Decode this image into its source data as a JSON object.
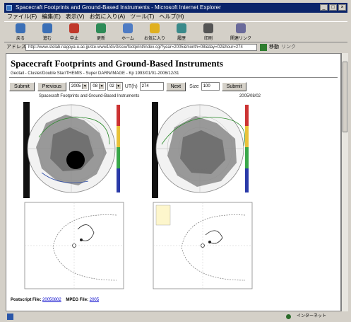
{
  "window": {
    "title": "Spacecraft Footprints and Ground-Based Instruments - Microsoft Internet Explorer",
    "minimize": "_",
    "maximize": "□",
    "close": "×"
  },
  "menu": [
    "ファイル(F)",
    "編集(E)",
    "表示(V)",
    "お気に入り(A)",
    "ツール(T)",
    "ヘルプ(H)"
  ],
  "toolbar": [
    {
      "label": "戻る",
      "icon": "back-icon",
      "color": "#3b6fb6"
    },
    {
      "label": "進む",
      "icon": "forward-icon",
      "color": "#3b6fb6"
    },
    {
      "label": "中止",
      "icon": "stop-icon",
      "color": "#c0392b"
    },
    {
      "label": "更新",
      "icon": "refresh-icon",
      "color": "#2e8b57"
    },
    {
      "label": "ホーム",
      "icon": "home-icon",
      "color": "#4f7cc4"
    },
    {
      "label": "お気に入り",
      "icon": "favorites-icon",
      "color": "#e0b020"
    },
    {
      "label": "履歴",
      "icon": "history-icon",
      "color": "#3a8a8a"
    },
    {
      "label": "印刷",
      "icon": "print-icon",
      "color": "#555555"
    },
    {
      "label": "関連リンク",
      "icon": "edit-icon",
      "color": "#6a6a9a"
    }
  ],
  "address": {
    "label": "アドレス",
    "url": "http://www.stelab.nagoya-u.ac.jp/ste-www1/div3/ssw/footprint/index.cgi?year=2005&month=08&day=02&hour=274",
    "go": "移動",
    "links": "リンク"
  },
  "page": {
    "title": "Spacecraft Footprints and Ground-Based Instruments",
    "subtitle": "Geotail - Cluster/Double Star/THEMIS - Super DARN/IMAGE - Kp 1993/01/01-2006/12/31"
  },
  "controls": {
    "submit1": "Submit",
    "previous": "Previous",
    "year": "2005",
    "month": "08",
    "day": "02",
    "hour_label": "UT(h)",
    "hour_value": "274",
    "next": "Next",
    "size_label": "Size",
    "size_value": "100",
    "submit2": "Submit"
  },
  "figure": {
    "title": "Spacecraft Footprints and Ground-Based Instruments",
    "date": "2005/08/02"
  },
  "footer": {
    "postscript_label": "Postscript File:",
    "postscript_link": "20050802",
    "mpeg_label": "MPEG File:",
    "mpeg_link": "2005"
  },
  "status": {
    "text": "",
    "zone": "インターネット"
  },
  "colors": {
    "titlebar": "#0a246a",
    "link": "#0000cc",
    "footprint_gray": "#8a8a8a",
    "dark_side": "#000000"
  }
}
